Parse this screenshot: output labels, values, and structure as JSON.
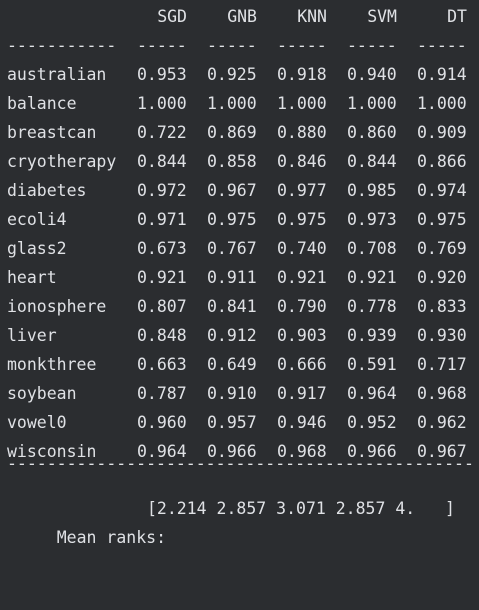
{
  "header": {
    "columns": [
      "SGD",
      "GNB",
      "KNN",
      "SVM",
      "DT"
    ]
  },
  "dashes": {
    "name": "-----------",
    "col": "-----"
  },
  "rows": [
    {
      "name": "australian",
      "values": [
        "0.953",
        "0.925",
        "0.918",
        "0.940",
        "0.914"
      ]
    },
    {
      "name": "balance",
      "values": [
        "1.000",
        "1.000",
        "1.000",
        "1.000",
        "1.000"
      ]
    },
    {
      "name": "breastcan",
      "values": [
        "0.722",
        "0.869",
        "0.880",
        "0.860",
        "0.909"
      ]
    },
    {
      "name": "cryotherapy",
      "values": [
        "0.844",
        "0.858",
        "0.846",
        "0.844",
        "0.866"
      ]
    },
    {
      "name": "diabetes",
      "values": [
        "0.972",
        "0.967",
        "0.977",
        "0.985",
        "0.974"
      ]
    },
    {
      "name": "ecoli4",
      "values": [
        "0.971",
        "0.975",
        "0.975",
        "0.973",
        "0.975"
      ]
    },
    {
      "name": "glass2",
      "values": [
        "0.673",
        "0.767",
        "0.740",
        "0.708",
        "0.769"
      ]
    },
    {
      "name": "heart",
      "values": [
        "0.921",
        "0.911",
        "0.921",
        "0.921",
        "0.920"
      ]
    },
    {
      "name": "ionosphere",
      "values": [
        "0.807",
        "0.841",
        "0.790",
        "0.778",
        "0.833"
      ]
    },
    {
      "name": "liver",
      "values": [
        "0.848",
        "0.912",
        "0.903",
        "0.939",
        "0.930"
      ]
    },
    {
      "name": "monkthree",
      "values": [
        "0.663",
        "0.649",
        "0.666",
        "0.591",
        "0.717"
      ]
    },
    {
      "name": "soybean",
      "values": [
        "0.787",
        "0.910",
        "0.917",
        "0.964",
        "0.968"
      ]
    },
    {
      "name": "vowel0",
      "values": [
        "0.960",
        "0.957",
        "0.946",
        "0.952",
        "0.962"
      ]
    },
    {
      "name": "wisconsin",
      "values": [
        "0.964",
        "0.966",
        "0.968",
        "0.966",
        "0.967"
      ]
    }
  ],
  "separator": "---------------------------------------------------------------",
  "mean_ranks": {
    "label": "Mean ranks:",
    "value": "[2.214 2.857 3.071 2.857 4.   ]"
  }
}
